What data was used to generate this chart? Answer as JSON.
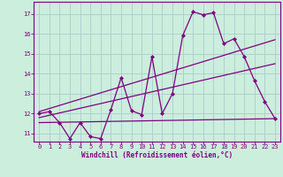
{
  "title": "",
  "xlabel": "Windchill (Refroidissement éolien,°C)",
  "bg_color": "#cceedd",
  "line_color": "#800080",
  "grid_color": "#aacccc",
  "text_color": "#800080",
  "xlim": [
    -0.5,
    23.5
  ],
  "ylim": [
    10.6,
    17.6
  ],
  "yticks": [
    11,
    12,
    13,
    14,
    15,
    16,
    17
  ],
  "xticks": [
    0,
    1,
    2,
    3,
    4,
    5,
    6,
    7,
    8,
    9,
    10,
    11,
    12,
    13,
    14,
    15,
    16,
    17,
    18,
    19,
    20,
    21,
    22,
    23
  ],
  "zigzag_x": [
    0,
    1,
    2,
    3,
    4,
    5,
    6,
    7,
    8,
    9,
    10,
    11,
    12,
    13,
    14,
    15,
    16,
    17,
    18,
    19,
    20,
    21,
    22,
    23
  ],
  "zigzag_y": [
    12.0,
    12.1,
    11.55,
    10.75,
    11.55,
    10.85,
    10.75,
    12.2,
    13.8,
    12.15,
    11.95,
    14.85,
    12.0,
    13.0,
    15.9,
    17.1,
    16.95,
    17.05,
    15.5,
    15.75,
    14.85,
    13.65,
    12.6,
    11.75
  ],
  "upper_line_x": [
    0,
    23
  ],
  "upper_line_y": [
    12.1,
    15.7
  ],
  "lower_line_x": [
    0,
    23
  ],
  "lower_line_y": [
    11.55,
    11.75
  ],
  "mid_line_x": [
    0,
    23
  ],
  "mid_line_y": [
    11.8,
    14.5
  ]
}
